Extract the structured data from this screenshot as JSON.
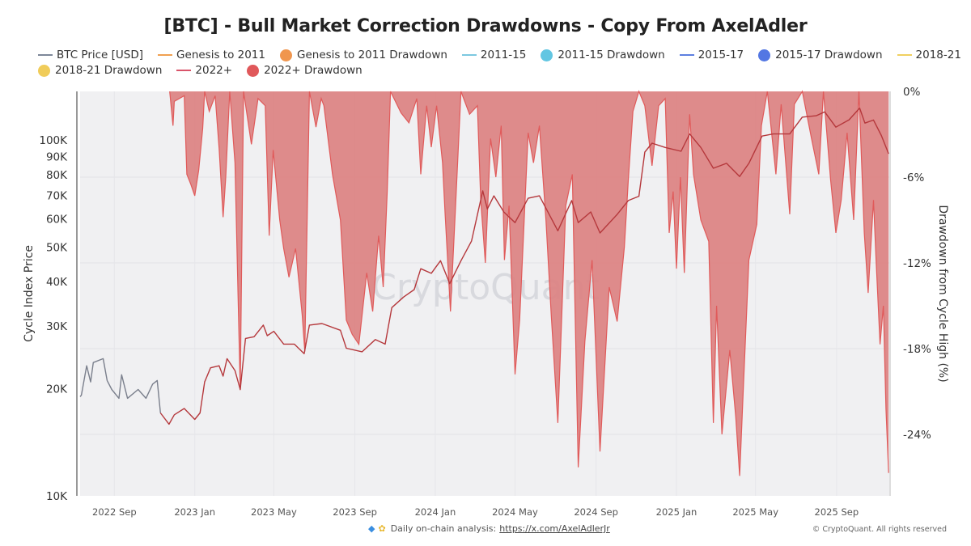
{
  "chart_data": {
    "type": "line",
    "title": "[BTC] - Bull Market Correction Drawdowns - Copy From AxelAdler",
    "ylabel": "Cycle Index Price",
    "y2label": "Drawdown from Cycle High (%)",
    "yscale": "log",
    "ylim": [
      10000,
      137000
    ],
    "y2lim": [
      -28.3,
      0
    ],
    "xlim": [
      "2022-07-11",
      "2025-11-20"
    ],
    "grid": true,
    "legend_placement": "top",
    "watermark": "CryptoQuant",
    "yticks": [
      "10K",
      "20K",
      "30K",
      "40K",
      "50K",
      "60K",
      "70K",
      "80K",
      "90K",
      "100K"
    ],
    "ytick_values": [
      10000,
      20000,
      30000,
      40000,
      50000,
      60000,
      70000,
      80000,
      90000,
      100000
    ],
    "y2ticks": [
      "0%",
      "-6%",
      "-12%",
      "-18%",
      "-24%"
    ],
    "y2tick_values": [
      0,
      -6,
      -12,
      -18,
      -24
    ],
    "xticks": [
      "2022 Sep",
      "2023 Jan",
      "2023 May",
      "2023 Sep",
      "2024 Jan",
      "2024 May",
      "2024 Sep",
      "2025 Jan",
      "2025 May",
      "2025 Sep"
    ],
    "xtick_dates": [
      "2022-09-01",
      "2023-01-01",
      "2023-05-01",
      "2023-09-01",
      "2024-01-01",
      "2024-05-01",
      "2024-09-01",
      "2025-01-01",
      "2025-05-01",
      "2025-09-01"
    ],
    "legend": [
      {
        "name": "BTC Price [USD]",
        "kind": "line",
        "color": "#7d8799"
      },
      {
        "name": "Genesis to 2011",
        "kind": "line",
        "color": "#f0a050"
      },
      {
        "name": "Genesis to 2011 Drawdown",
        "kind": "dot",
        "color": "#f0964e"
      },
      {
        "name": "2011-15",
        "kind": "line",
        "color": "#7cc8e0"
      },
      {
        "name": "2011-15 Drawdown",
        "kind": "dot",
        "color": "#62c6e2"
      },
      {
        "name": "2015-17",
        "kind": "line",
        "color": "#5d7fe0"
      },
      {
        "name": "2015-17 Drawdown",
        "kind": "dot",
        "color": "#5377e3"
      },
      {
        "name": "2018-21",
        "kind": "line",
        "color": "#f0d060"
      },
      {
        "name": "2018-21 Drawdown",
        "kind": "dot",
        "color": "#f0cc5a"
      },
      {
        "name": "2022+",
        "kind": "line",
        "color": "#d9546a"
      },
      {
        "name": "2022+ Drawdown",
        "kind": "dot",
        "color": "#e0585a"
      }
    ],
    "series": [
      {
        "name": "BTC Price [USD]",
        "axis": "left",
        "color": "#7a7f8c",
        "points": [
          [
            "2022-07-11",
            19000
          ],
          [
            "2022-07-13",
            19200
          ],
          [
            "2022-07-21",
            23200
          ],
          [
            "2022-07-27",
            20900
          ],
          [
            "2022-07-31",
            23700
          ],
          [
            "2022-08-15",
            24300
          ],
          [
            "2022-08-21",
            21100
          ],
          [
            "2022-08-28",
            19900
          ],
          [
            "2022-09-08",
            18800
          ],
          [
            "2022-09-12",
            21900
          ],
          [
            "2022-09-21",
            18800
          ],
          [
            "2022-10-07",
            19900
          ],
          [
            "2022-10-19",
            18800
          ],
          [
            "2022-10-29",
            20600
          ],
          [
            "2022-11-05",
            21100
          ],
          [
            "2022-11-10",
            17100
          ]
        ]
      },
      {
        "name": "2022+",
        "axis": "left",
        "color": "#b5383c",
        "points": [
          [
            "2022-11-10",
            17100
          ],
          [
            "2022-11-23",
            15900
          ],
          [
            "2022-12-01",
            16900
          ],
          [
            "2022-12-16",
            17600
          ],
          [
            "2023-01-01",
            16400
          ],
          [
            "2023-01-09",
            17100
          ],
          [
            "2023-01-16",
            20900
          ],
          [
            "2023-01-25",
            22900
          ],
          [
            "2023-02-07",
            23200
          ],
          [
            "2023-02-13",
            21700
          ],
          [
            "2023-02-19",
            24300
          ],
          [
            "2023-03-03",
            22500
          ],
          [
            "2023-03-11",
            19900
          ],
          [
            "2023-03-19",
            27700
          ],
          [
            "2023-04-01",
            28000
          ],
          [
            "2023-04-15",
            30200
          ],
          [
            "2023-04-21",
            28200
          ],
          [
            "2023-05-01",
            29000
          ],
          [
            "2023-05-16",
            26700
          ],
          [
            "2023-06-01",
            26700
          ],
          [
            "2023-06-16",
            25100
          ],
          [
            "2023-06-24",
            30200
          ],
          [
            "2023-07-13",
            30500
          ],
          [
            "2023-08-10",
            29200
          ],
          [
            "2023-08-19",
            26000
          ],
          [
            "2023-09-12",
            25400
          ],
          [
            "2023-10-02",
            27500
          ],
          [
            "2023-10-17",
            26700
          ],
          [
            "2023-10-27",
            33800
          ],
          [
            "2023-11-14",
            36200
          ],
          [
            "2023-11-30",
            38000
          ],
          [
            "2023-12-10",
            43500
          ],
          [
            "2023-12-26",
            42200
          ],
          [
            "2024-01-09",
            45800
          ],
          [
            "2024-01-23",
            39500
          ],
          [
            "2024-02-09",
            45800
          ],
          [
            "2024-02-25",
            52000
          ],
          [
            "2024-03-13",
            72000
          ],
          [
            "2024-03-20",
            64000
          ],
          [
            "2024-03-30",
            69700
          ],
          [
            "2024-04-14",
            62800
          ],
          [
            "2024-05-01",
            58600
          ],
          [
            "2024-05-21",
            68600
          ],
          [
            "2024-06-07",
            69700
          ],
          [
            "2024-07-05",
            55600
          ],
          [
            "2024-07-26",
            67600
          ],
          [
            "2024-08-05",
            58600
          ],
          [
            "2024-08-24",
            62800
          ],
          [
            "2024-09-07",
            54800
          ],
          [
            "2024-10-03",
            61800
          ],
          [
            "2024-10-20",
            67600
          ],
          [
            "2024-11-05",
            69500
          ],
          [
            "2024-11-14",
            92500
          ],
          [
            "2024-11-25",
            98000
          ],
          [
            "2024-12-15",
            95300
          ],
          [
            "2025-01-08",
            93000
          ],
          [
            "2025-01-21",
            104000
          ],
          [
            "2025-02-07",
            95300
          ],
          [
            "2025-02-26",
            83300
          ],
          [
            "2025-03-18",
            86000
          ],
          [
            "2025-04-07",
            79000
          ],
          [
            "2025-04-21",
            86000
          ],
          [
            "2025-05-11",
            102600
          ],
          [
            "2025-05-28",
            104000
          ],
          [
            "2025-06-22",
            104000
          ],
          [
            "2025-07-11",
            116000
          ],
          [
            "2025-08-01",
            117000
          ],
          [
            "2025-08-14",
            120000
          ],
          [
            "2025-08-31",
            108700
          ],
          [
            "2025-09-20",
            114000
          ],
          [
            "2025-10-06",
            123000
          ],
          [
            "2025-10-14",
            111600
          ],
          [
            "2025-10-27",
            113800
          ],
          [
            "2025-11-08",
            103000
          ],
          [
            "2025-11-19",
            91500
          ]
        ]
      },
      {
        "name": "2022+ Drawdown",
        "axis": "right",
        "color": "#e05a5a",
        "fill": "#dc8585",
        "points": [
          [
            "2022-11-24",
            0
          ],
          [
            "2022-11-29",
            -2.4
          ],
          [
            "2022-12-01",
            -0.7
          ],
          [
            "2022-12-16",
            -0.3
          ],
          [
            "2022-12-20",
            -5.8
          ],
          [
            "2022-12-26",
            -6.5
          ],
          [
            "2023-01-01",
            -7.3
          ],
          [
            "2023-01-07",
            -5.5
          ],
          [
            "2023-01-13",
            -2.6
          ],
          [
            "2023-01-16",
            0
          ],
          [
            "2023-01-23",
            -1.4
          ],
          [
            "2023-02-01",
            -0.3
          ],
          [
            "2023-02-07",
            -4.0
          ],
          [
            "2023-02-13",
            -8.8
          ],
          [
            "2023-02-17",
            -6.0
          ],
          [
            "2023-02-23",
            0
          ],
          [
            "2023-03-03",
            -5.0
          ],
          [
            "2023-03-11",
            -20.9
          ],
          [
            "2023-03-16",
            0
          ],
          [
            "2023-03-28",
            -3.7
          ],
          [
            "2023-04-07",
            -0.5
          ],
          [
            "2023-04-18",
            -1.0
          ],
          [
            "2023-04-24",
            -10.1
          ],
          [
            "2023-04-30",
            -4.1
          ],
          [
            "2023-05-10",
            -9.0
          ],
          [
            "2023-05-16",
            -11.0
          ],
          [
            "2023-05-24",
            -13.0
          ],
          [
            "2023-06-03",
            -11.0
          ],
          [
            "2023-06-13",
            -15.6
          ],
          [
            "2023-06-17",
            -18.2
          ],
          [
            "2023-06-24",
            0
          ],
          [
            "2023-07-04",
            -2.5
          ],
          [
            "2023-07-12",
            -0.5
          ],
          [
            "2023-07-16",
            -1.0
          ],
          [
            "2023-07-29",
            -5.8
          ],
          [
            "2023-08-10",
            -9.0
          ],
          [
            "2023-08-19",
            -16.0
          ],
          [
            "2023-08-28",
            -17.0
          ],
          [
            "2023-09-07",
            -17.7
          ],
          [
            "2023-09-19",
            -12.7
          ],
          [
            "2023-09-28",
            -15.4
          ],
          [
            "2023-10-07",
            -10.1
          ],
          [
            "2023-10-14",
            -13.7
          ],
          [
            "2023-10-20",
            -7.1
          ],
          [
            "2023-10-25",
            0
          ],
          [
            "2023-11-10",
            -1.5
          ],
          [
            "2023-11-22",
            -2.2
          ],
          [
            "2023-12-04",
            -0.5
          ],
          [
            "2023-12-10",
            -5.8
          ],
          [
            "2023-12-19",
            -1.0
          ],
          [
            "2023-12-26",
            -3.9
          ],
          [
            "2024-01-03",
            -1.0
          ],
          [
            "2024-01-12",
            -5.0
          ],
          [
            "2024-01-16",
            -8.6
          ],
          [
            "2024-01-24",
            -15.4
          ],
          [
            "2024-02-01",
            -7.8
          ],
          [
            "2024-02-09",
            0
          ],
          [
            "2024-02-22",
            -1.6
          ],
          [
            "2024-03-05",
            -1.0
          ],
          [
            "2024-03-10",
            -7.6
          ],
          [
            "2024-03-17",
            -12.0
          ],
          [
            "2024-03-25",
            -3.3
          ],
          [
            "2024-04-02",
            -6.0
          ],
          [
            "2024-04-10",
            -2.4
          ],
          [
            "2024-04-15",
            -11.8
          ],
          [
            "2024-04-22",
            -8.0
          ],
          [
            "2024-05-01",
            -19.8
          ],
          [
            "2024-05-08",
            -16.0
          ],
          [
            "2024-05-21",
            -2.9
          ],
          [
            "2024-05-29",
            -5.0
          ],
          [
            "2024-06-07",
            -2.4
          ],
          [
            "2024-06-17",
            -9.0
          ],
          [
            "2024-06-25",
            -15.6
          ],
          [
            "2024-07-05",
            -23.2
          ],
          [
            "2024-07-17",
            -8.0
          ],
          [
            "2024-07-27",
            -5.8
          ],
          [
            "2024-08-05",
            -26.3
          ],
          [
            "2024-08-15",
            -17.5
          ],
          [
            "2024-08-26",
            -11.8
          ],
          [
            "2024-09-07",
            -25.2
          ],
          [
            "2024-09-21",
            -13.7
          ],
          [
            "2024-10-03",
            -16.1
          ],
          [
            "2024-10-14",
            -10.9
          ],
          [
            "2024-10-20",
            -6.2
          ],
          [
            "2024-10-27",
            -1.4
          ],
          [
            "2024-11-05",
            0
          ],
          [
            "2024-11-14",
            -1.0
          ],
          [
            "2024-11-25",
            -5.2
          ],
          [
            "2024-12-05",
            -1.0
          ],
          [
            "2024-12-15",
            -0.5
          ],
          [
            "2024-12-21",
            -9.9
          ],
          [
            "2024-12-27",
            -7.0
          ],
          [
            "2025-01-01",
            -12.4
          ],
          [
            "2025-01-07",
            -6.0
          ],
          [
            "2025-01-13",
            -12.7
          ],
          [
            "2025-01-21",
            -1.6
          ],
          [
            "2025-01-27",
            -5.8
          ],
          [
            "2025-02-07",
            -9.0
          ],
          [
            "2025-02-19",
            -10.5
          ],
          [
            "2025-02-26",
            -23.2
          ],
          [
            "2025-03-03",
            -15.0
          ],
          [
            "2025-03-11",
            -24.0
          ],
          [
            "2025-03-23",
            -18.1
          ],
          [
            "2025-04-01",
            -22.8
          ],
          [
            "2025-04-07",
            -26.9
          ],
          [
            "2025-04-13",
            -20.3
          ],
          [
            "2025-04-21",
            -11.8
          ],
          [
            "2025-05-03",
            -9.3
          ],
          [
            "2025-05-10",
            -2.4
          ],
          [
            "2025-05-19",
            0
          ],
          [
            "2025-06-01",
            -5.8
          ],
          [
            "2025-06-09",
            -0.9
          ],
          [
            "2025-06-22",
            -8.6
          ],
          [
            "2025-06-29",
            -0.9
          ],
          [
            "2025-07-11",
            0
          ],
          [
            "2025-07-25",
            -3.3
          ],
          [
            "2025-08-05",
            -5.8
          ],
          [
            "2025-08-12",
            0
          ],
          [
            "2025-08-23",
            -6.2
          ],
          [
            "2025-08-31",
            -9.9
          ],
          [
            "2025-09-08",
            -7.6
          ],
          [
            "2025-09-17",
            -2.9
          ],
          [
            "2025-09-27",
            -9.0
          ],
          [
            "2025-10-05",
            0
          ],
          [
            "2025-10-13",
            -9.9
          ],
          [
            "2025-10-19",
            -14.1
          ],
          [
            "2025-10-27",
            -7.6
          ],
          [
            "2025-10-31",
            -11.8
          ],
          [
            "2025-11-06",
            -17.7
          ],
          [
            "2025-11-11",
            -15.0
          ],
          [
            "2025-11-15",
            -22.2
          ],
          [
            "2025-11-19",
            -26.7
          ]
        ]
      }
    ]
  },
  "footer": {
    "text": "Daily on-chain analysis:",
    "link": "https://x.com/AxelAdlerJr",
    "copyright": "© CryptoQuant. All rights reserved"
  }
}
